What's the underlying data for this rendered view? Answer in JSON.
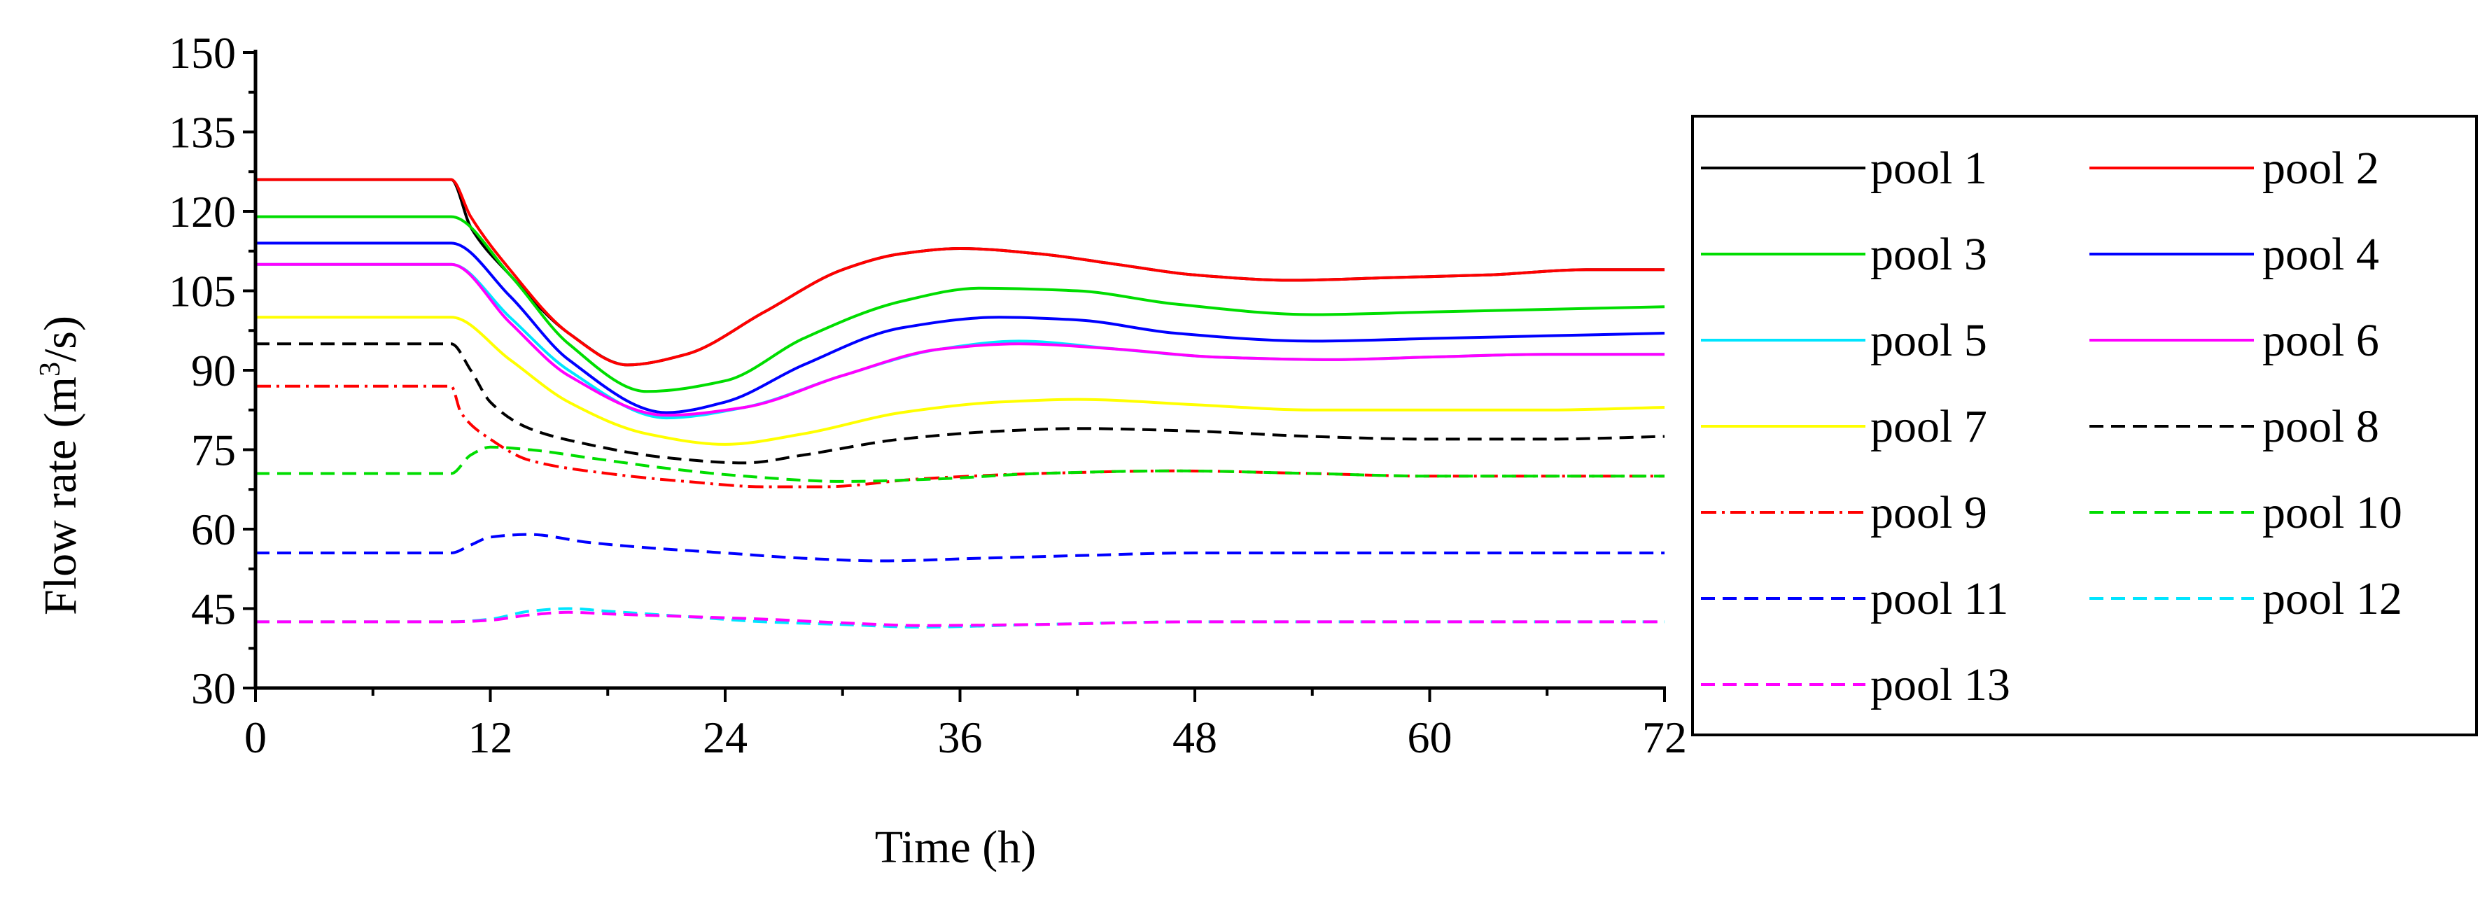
{
  "chart_data": {
    "type": "line",
    "title": "",
    "xlabel": "Time (h)",
    "ylabel_main": "Flow rate (m",
    "ylabel_sup": "3",
    "ylabel_tail": "/s)",
    "xlim": [
      0,
      72
    ],
    "ylim": [
      30,
      150
    ],
    "xticks": [
      0,
      12,
      24,
      36,
      48,
      60,
      72
    ],
    "xtick_labels": [
      "0",
      "12",
      "24",
      "36",
      "48",
      "60",
      "72"
    ],
    "yticks": [
      30,
      45,
      60,
      75,
      90,
      105,
      120,
      135,
      150
    ],
    "ytick_labels": [
      "30",
      "45",
      "60",
      "75",
      "90",
      "105",
      "120",
      "135",
      "150"
    ],
    "grid": false,
    "legend_position": "right",
    "series": [
      {
        "name": "pool 1",
        "color": "#000000",
        "dash": "solid",
        "x": [
          0,
          10,
          11,
          13,
          16,
          19,
          22,
          26,
          30,
          33,
          36,
          40,
          44,
          48,
          53,
          58,
          63,
          68,
          72
        ],
        "y": [
          126,
          126,
          117,
          108,
          97,
          91,
          93,
          101,
          109,
          112,
          113,
          112,
          110,
          108,
          107,
          107.5,
          108,
          109,
          109
        ]
      },
      {
        "name": "pool 2",
        "color": "#ff0000",
        "dash": "solid",
        "x": [
          0,
          10,
          11,
          13,
          16,
          19,
          22,
          26,
          30,
          33,
          36,
          40,
          44,
          48,
          53,
          58,
          63,
          68,
          72
        ],
        "y": [
          126,
          126,
          119,
          109,
          97,
          91,
          93,
          101,
          109,
          112,
          113,
          112,
          110,
          108,
          107,
          107.5,
          108,
          109,
          109
        ]
      },
      {
        "name": "pool 3",
        "color": "#00dd00",
        "dash": "solid",
        "x": [
          0,
          10,
          13,
          16,
          20,
          24,
          28,
          33,
          37,
          42,
          47,
          54,
          60,
          66,
          72
        ],
        "y": [
          119,
          119,
          108,
          95,
          86,
          88,
          96,
          103,
          105.5,
          105,
          102.5,
          100.5,
          101,
          101.5,
          102
        ]
      },
      {
        "name": "pool 4",
        "color": "#0000ff",
        "dash": "solid",
        "x": [
          0,
          10,
          13,
          16,
          21,
          24,
          28,
          33,
          38,
          42,
          47,
          54,
          60,
          66,
          72
        ],
        "y": [
          114,
          114,
          104,
          92,
          82,
          84,
          91,
          98,
          100,
          99.5,
          97,
          95.5,
          96,
          96.5,
          97
        ]
      },
      {
        "name": "pool 5",
        "color": "#00e5ff",
        "dash": "solid",
        "x": [
          0,
          10,
          13,
          16,
          21,
          25,
          30,
          35,
          39,
          44,
          49,
          55,
          60,
          66,
          72
        ],
        "y": [
          110,
          110,
          100,
          90,
          81,
          83,
          89,
          94,
          95.5,
          94,
          92.5,
          92,
          92.5,
          93,
          93
        ]
      },
      {
        "name": "pool 6",
        "color": "#ff00ff",
        "dash": "solid",
        "x": [
          0,
          10,
          13,
          16,
          21,
          25,
          30,
          35,
          39,
          44,
          49,
          55,
          60,
          66,
          72
        ],
        "y": [
          110,
          110,
          99,
          89,
          81.5,
          83,
          89,
          94,
          95,
          94,
          92.5,
          92,
          92.5,
          93,
          93
        ]
      },
      {
        "name": "pool 7",
        "color": "#ffff00",
        "dash": "solid",
        "x": [
          0,
          10,
          13,
          16,
          20,
          24,
          28,
          33,
          38,
          42,
          48,
          54,
          60,
          66,
          72
        ],
        "y": [
          100,
          100,
          92,
          84,
          78,
          76,
          78,
          82,
          84,
          84.5,
          83.5,
          82.5,
          82.5,
          82.5,
          83
        ]
      },
      {
        "name": "pool 8",
        "color": "#000000",
        "dash": "dashed",
        "x": [
          0,
          10,
          11,
          12,
          14,
          17,
          21,
          25,
          28,
          33,
          38,
          42,
          48,
          54,
          60,
          66,
          72
        ],
        "y": [
          95,
          95,
          90,
          84,
          79,
          76,
          73.5,
          72.5,
          74,
          77,
          78.5,
          79,
          78.5,
          77.5,
          77,
          77,
          77.5
        ]
      },
      {
        "name": "pool 9",
        "color": "#ff0000",
        "dash": "dashdot",
        "x": [
          0,
          10,
          10.5,
          12,
          14,
          18,
          22,
          26,
          29,
          34,
          40,
          47,
          54,
          60,
          66,
          72
        ],
        "y": [
          87,
          87,
          82,
          77,
          73,
          70.5,
          69,
          68,
          68,
          69.5,
          70.5,
          71,
          70.5,
          70,
          70,
          70
        ]
      },
      {
        "name": "pool 10",
        "color": "#00dd00",
        "dash": "dashed",
        "x": [
          0,
          10,
          11,
          12,
          14,
          17,
          21,
          25,
          30,
          35,
          40,
          47,
          54,
          60,
          66,
          72
        ],
        "y": [
          70.5,
          70.5,
          74,
          75.5,
          75,
          73.5,
          71.5,
          70,
          69,
          69.5,
          70.5,
          71,
          70.5,
          70,
          70,
          70
        ]
      },
      {
        "name": "pool 11",
        "color": "#0000ff",
        "dash": "dashed",
        "x": [
          0,
          10,
          11,
          12,
          14,
          17,
          20,
          24,
          28,
          32,
          37,
          42,
          48,
          54,
          60,
          66,
          72
        ],
        "y": [
          55.5,
          55.5,
          57,
          58.5,
          59,
          57.5,
          56.5,
          55.5,
          54.5,
          54,
          54.5,
          55,
          55.5,
          55.5,
          55.5,
          55.5,
          55.5
        ]
      },
      {
        "name": "pool 12",
        "color": "#00e5ff",
        "dash": "dashed",
        "x": [
          0,
          10,
          12,
          14,
          16,
          18,
          22,
          26,
          30,
          34,
          40,
          48,
          56,
          64,
          72
        ],
        "y": [
          42.5,
          42.5,
          43,
          44.5,
          45,
          44.5,
          43.5,
          42.5,
          42,
          41.5,
          42,
          42.5,
          42.5,
          42.5,
          42.5
        ]
      },
      {
        "name": "pool 13",
        "color": "#ff00ff",
        "dash": "dashed",
        "x": [
          0,
          10,
          12,
          14,
          16,
          18,
          22,
          26,
          30,
          34,
          40,
          48,
          56,
          64,
          72
        ],
        "y": [
          42.5,
          42.5,
          42.8,
          43.8,
          44.3,
          44,
          43.5,
          43,
          42.3,
          41.8,
          42,
          42.5,
          42.5,
          42.5,
          42.5
        ]
      }
    ]
  }
}
